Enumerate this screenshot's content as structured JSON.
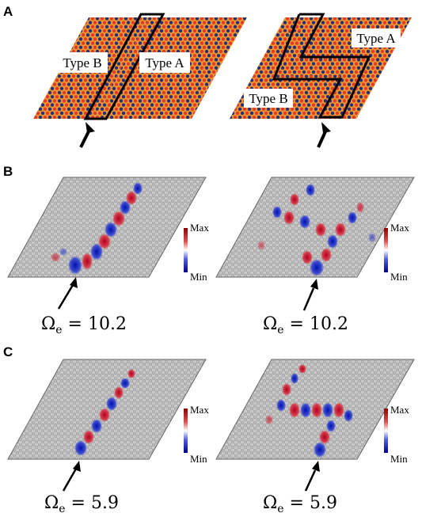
{
  "panels": {
    "A": {
      "letter": "A",
      "left": {
        "label_b": "Type B",
        "label_a": "Type A"
      },
      "right": {
        "label_a": "Type A",
        "label_b": "Type B"
      }
    },
    "B": {
      "letter": "B",
      "colorbar": {
        "max": "Max",
        "min": "Min"
      },
      "left_freq": {
        "symbol": "Ω",
        "sub": "e",
        "rest": " = 10.2"
      },
      "right_freq": {
        "symbol": "Ω",
        "sub": "e",
        "rest": " = 10.2"
      }
    },
    "C": {
      "letter": "C",
      "colorbar": {
        "max": "Max",
        "min": "Min"
      },
      "left_freq": {
        "symbol": "Ω",
        "sub": "e",
        "rest": " = 5.9"
      },
      "right_freq": {
        "symbol": "Ω",
        "sub": "e",
        "rest": " = 5.9"
      }
    }
  },
  "colors": {
    "lattice_orange": "#f09a2e",
    "lattice_red": "#e23a2a",
    "lattice_navy": "#24307a",
    "field_gray": "#bdbdbd",
    "field_red": "#c8102e",
    "field_blue": "#1020c0"
  }
}
